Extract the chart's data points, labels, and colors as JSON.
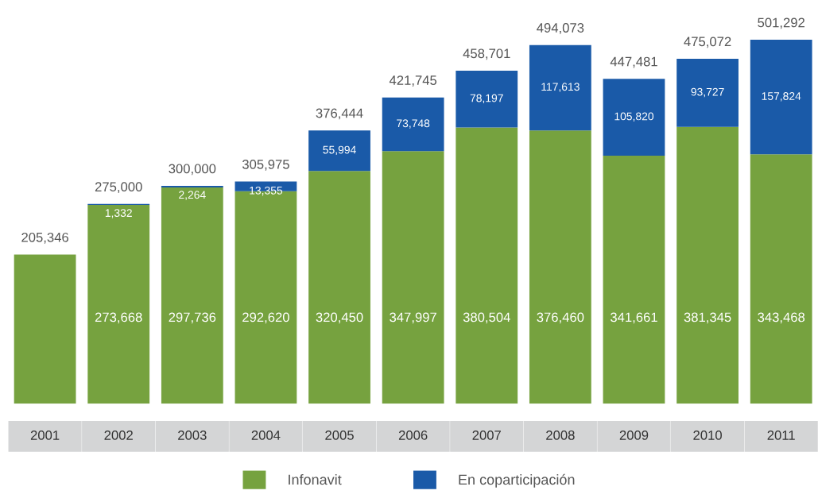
{
  "chart_data": {
    "type": "bar",
    "stacked": true,
    "categories": [
      "2001",
      "2002",
      "2003",
      "2004",
      "2005",
      "2006",
      "2007",
      "2008",
      "2009",
      "2010",
      "2011"
    ],
    "series": [
      {
        "name": "Infonavit",
        "color": "#76a23f",
        "values": [
          205346,
          273668,
          297736,
          292620,
          320450,
          347997,
          380504,
          376460,
          341661,
          381345,
          343468
        ],
        "value_labels": [
          null,
          "273,668",
          "297,736",
          "292,620",
          "320,450",
          "347,997",
          "380,504",
          "376,460",
          "341,661",
          "381,345",
          "343,468"
        ]
      },
      {
        "name": "En coparticipación",
        "color": "#1a5aa8",
        "values": [
          null,
          1332,
          2264,
          13355,
          55994,
          73748,
          78197,
          117613,
          105820,
          93727,
          157824
        ],
        "value_labels": [
          null,
          "1,332",
          "2,264",
          "13,355",
          "55,994",
          "73,748",
          "78,197",
          "117,613",
          "105,820",
          "93,727",
          "157,824"
        ]
      }
    ],
    "totals": [
      "205,346",
      "275,000",
      "300,000",
      "305,975",
      "376,444",
      "421,745",
      "458,701",
      "494,073",
      "447,481",
      "475,072",
      "501,292"
    ],
    "legend": "bottom"
  }
}
